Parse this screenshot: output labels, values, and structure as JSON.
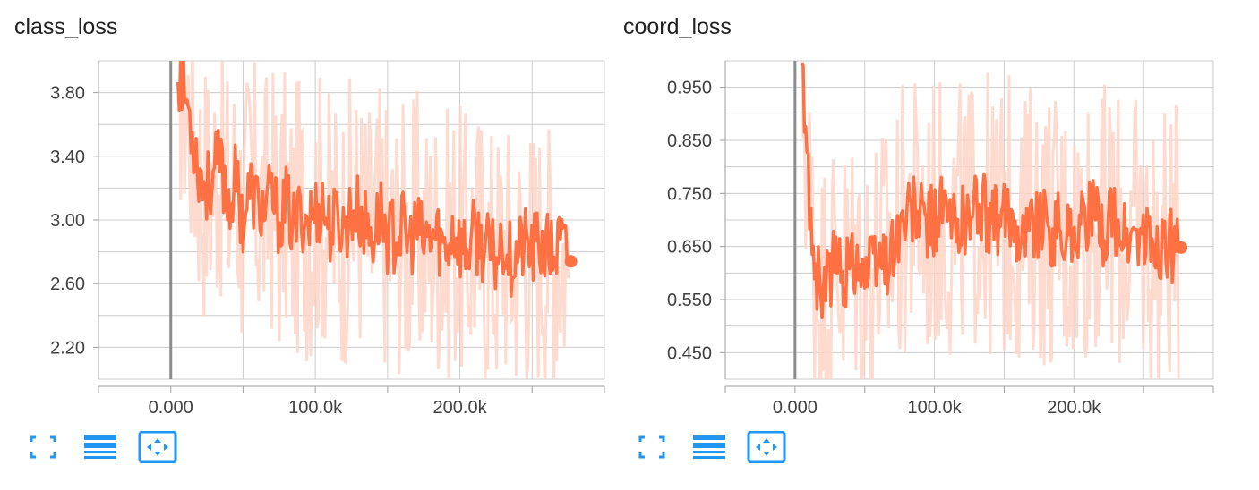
{
  "colors": {
    "accent": "#ff7043",
    "raw": "#ffd4c7",
    "grid": "#cccccc",
    "axis": "#9e9e9e",
    "zero_line": "#8c8c8c",
    "button": "#2196f3"
  },
  "buttons": {
    "toggle_expand": "fullscreen-icon",
    "toggle_log_scale": "list-lines-icon",
    "fit_domain": "fit-to-data-icon"
  },
  "chart_data": [
    {
      "type": "line",
      "title": "class_loss",
      "xlabel": "",
      "ylabel": "",
      "xlim": [
        -50000,
        300000
      ],
      "ylim": [
        2.0,
        4.0
      ],
      "x_ticks": [
        0,
        100000,
        200000
      ],
      "x_tick_labels": [
        "0.000",
        "100.0k",
        "200.0k"
      ],
      "y_ticks": [
        2.2,
        2.6,
        3.0,
        3.4,
        3.8
      ],
      "y_tick_labels": [
        "2.20",
        "2.60",
        "3.00",
        "3.40",
        "3.80"
      ],
      "grid": true,
      "smoothed_last_value": 2.74,
      "series": [
        {
          "x": [
            5000,
            10000,
            15000,
            20000,
            25000,
            30000,
            35000,
            40000,
            45000,
            50000,
            55000,
            60000,
            65000,
            70000,
            75000,
            80000,
            85000,
            90000,
            95000,
            100000,
            105000,
            110000,
            115000,
            120000,
            125000,
            130000,
            135000,
            140000,
            145000,
            150000,
            155000,
            160000,
            165000,
            170000,
            175000,
            180000,
            185000,
            190000,
            195000,
            200000,
            205000,
            210000,
            215000,
            220000,
            225000,
            230000,
            235000,
            240000,
            245000,
            250000,
            255000,
            260000,
            265000,
            270000,
            275000
          ],
          "values": [
            3.95,
            3.8,
            3.55,
            3.3,
            3.2,
            3.3,
            3.35,
            3.1,
            3.25,
            3.0,
            3.2,
            3.1,
            3.05,
            3.15,
            3.0,
            3.1,
            2.95,
            3.05,
            3.0,
            3.05,
            3.1,
            2.95,
            3.0,
            2.95,
            3.05,
            3.05,
            2.95,
            2.9,
            3.05,
            2.9,
            2.9,
            2.95,
            2.85,
            2.95,
            2.85,
            2.9,
            2.9,
            2.8,
            2.95,
            2.85,
            2.8,
            2.9,
            2.85,
            2.8,
            2.75,
            2.9,
            2.75,
            2.8,
            2.85,
            2.8,
            2.85,
            2.8,
            2.8,
            2.85,
            2.74
          ]
        }
      ]
    },
    {
      "type": "line",
      "title": "coord_loss",
      "xlabel": "",
      "ylabel": "",
      "xlim": [
        -50000,
        300000
      ],
      "ylim": [
        0.4,
        1.0
      ],
      "x_ticks": [
        0,
        100000,
        200000
      ],
      "x_tick_labels": [
        "0.000",
        "100.0k",
        "200.0k"
      ],
      "y_ticks": [
        0.45,
        0.55,
        0.65,
        0.75,
        0.85,
        0.95
      ],
      "y_tick_labels": [
        "0.450",
        "0.550",
        "0.650",
        "0.750",
        "0.850",
        "0.950"
      ],
      "grid": true,
      "smoothed_last_value": 0.648,
      "series": [
        {
          "x": [
            5000,
            10000,
            15000,
            20000,
            25000,
            30000,
            35000,
            40000,
            45000,
            50000,
            55000,
            60000,
            65000,
            70000,
            75000,
            80000,
            85000,
            90000,
            95000,
            100000,
            105000,
            110000,
            115000,
            120000,
            125000,
            130000,
            135000,
            140000,
            145000,
            150000,
            155000,
            160000,
            165000,
            170000,
            175000,
            180000,
            185000,
            190000,
            195000,
            200000,
            205000,
            210000,
            215000,
            220000,
            225000,
            230000,
            235000,
            240000,
            245000,
            250000,
            255000,
            260000,
            265000,
            270000,
            275000
          ],
          "values": [
            0.98,
            0.75,
            0.6,
            0.56,
            0.6,
            0.62,
            0.6,
            0.62,
            0.64,
            0.6,
            0.61,
            0.63,
            0.62,
            0.65,
            0.68,
            0.7,
            0.72,
            0.7,
            0.69,
            0.7,
            0.72,
            0.7,
            0.68,
            0.71,
            0.7,
            0.73,
            0.72,
            0.7,
            0.69,
            0.7,
            0.71,
            0.69,
            0.68,
            0.7,
            0.7,
            0.69,
            0.68,
            0.69,
            0.67,
            0.68,
            0.69,
            0.71,
            0.7,
            0.68,
            0.7,
            0.69,
            0.67,
            0.66,
            0.67,
            0.66,
            0.65,
            0.64,
            0.66,
            0.65,
            0.648
          ]
        }
      ]
    }
  ]
}
